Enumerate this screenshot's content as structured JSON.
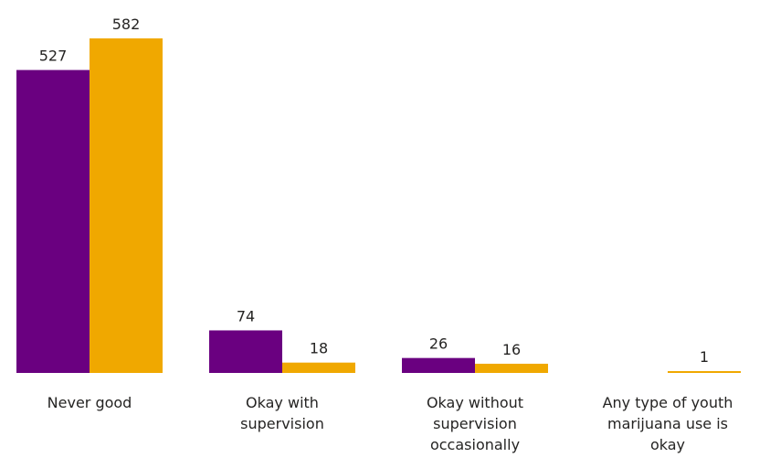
{
  "chart_data": {
    "type": "bar",
    "categories": [
      "Never good",
      "Okay with supervision",
      "Okay without supervision occasionally",
      "Any type of youth marijuana use is okay"
    ],
    "category_lines": [
      [
        "Never good"
      ],
      [
        "Okay with",
        "supervision"
      ],
      [
        "Okay without",
        "supervision",
        "occasionally"
      ],
      [
        "Any type of youth",
        "marijuana use is",
        "okay"
      ]
    ],
    "series": [
      {
        "color": "#6a0080",
        "values": [
          527,
          74,
          26,
          0
        ]
      },
      {
        "color": "#f0a800",
        "values": [
          582,
          18,
          16,
          1
        ]
      }
    ],
    "data_labels": [
      [
        "527",
        "74",
        "26",
        ""
      ],
      [
        "582",
        "18",
        "16",
        "1"
      ]
    ],
    "ylim": [
      0,
      582
    ],
    "title": "",
    "xlabel": "",
    "ylabel": "",
    "grid": false,
    "legend": "none"
  }
}
